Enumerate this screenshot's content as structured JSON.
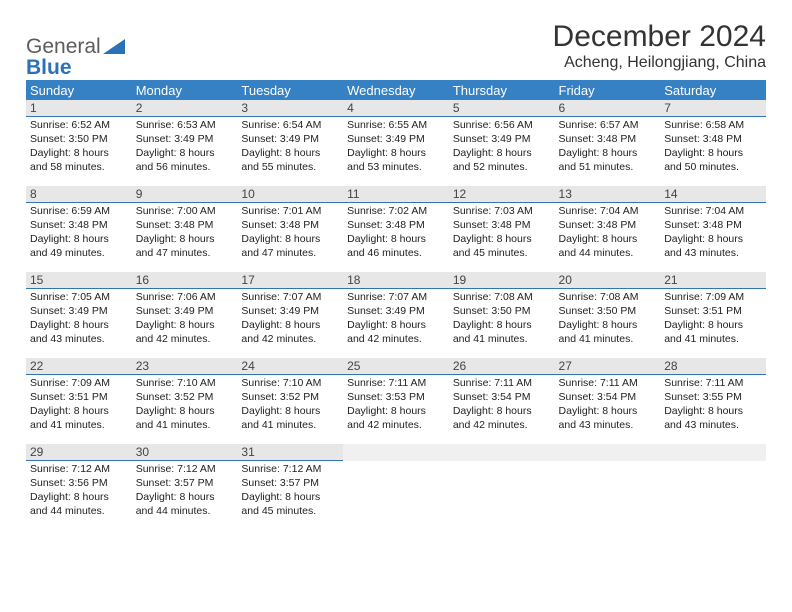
{
  "logo": {
    "general": "General",
    "blue": "Blue"
  },
  "title": "December 2024",
  "subtitle": "Acheng, Heilongjiang, China",
  "colors": {
    "header_bg": "#3581c4",
    "header_fg": "#ffffff",
    "daybar_bg": "#e7e7e7",
    "daybar_border": "#3074b0",
    "text": "#222222",
    "logo_gray": "#5c5c5c",
    "logo_blue": "#2a72b8"
  },
  "weekdays": [
    "Sunday",
    "Monday",
    "Tuesday",
    "Wednesday",
    "Thursday",
    "Friday",
    "Saturday"
  ],
  "days": [
    {
      "n": 1,
      "sunrise": "6:52 AM",
      "sunset": "3:50 PM",
      "day_h": 8,
      "day_m": 58
    },
    {
      "n": 2,
      "sunrise": "6:53 AM",
      "sunset": "3:49 PM",
      "day_h": 8,
      "day_m": 56
    },
    {
      "n": 3,
      "sunrise": "6:54 AM",
      "sunset": "3:49 PM",
      "day_h": 8,
      "day_m": 55
    },
    {
      "n": 4,
      "sunrise": "6:55 AM",
      "sunset": "3:49 PM",
      "day_h": 8,
      "day_m": 53
    },
    {
      "n": 5,
      "sunrise": "6:56 AM",
      "sunset": "3:49 PM",
      "day_h": 8,
      "day_m": 52
    },
    {
      "n": 6,
      "sunrise": "6:57 AM",
      "sunset": "3:48 PM",
      "day_h": 8,
      "day_m": 51
    },
    {
      "n": 7,
      "sunrise": "6:58 AM",
      "sunset": "3:48 PM",
      "day_h": 8,
      "day_m": 50
    },
    {
      "n": 8,
      "sunrise": "6:59 AM",
      "sunset": "3:48 PM",
      "day_h": 8,
      "day_m": 49
    },
    {
      "n": 9,
      "sunrise": "7:00 AM",
      "sunset": "3:48 PM",
      "day_h": 8,
      "day_m": 47
    },
    {
      "n": 10,
      "sunrise": "7:01 AM",
      "sunset": "3:48 PM",
      "day_h": 8,
      "day_m": 47
    },
    {
      "n": 11,
      "sunrise": "7:02 AM",
      "sunset": "3:48 PM",
      "day_h": 8,
      "day_m": 46
    },
    {
      "n": 12,
      "sunrise": "7:03 AM",
      "sunset": "3:48 PM",
      "day_h": 8,
      "day_m": 45
    },
    {
      "n": 13,
      "sunrise": "7:04 AM",
      "sunset": "3:48 PM",
      "day_h": 8,
      "day_m": 44
    },
    {
      "n": 14,
      "sunrise": "7:04 AM",
      "sunset": "3:48 PM",
      "day_h": 8,
      "day_m": 43
    },
    {
      "n": 15,
      "sunrise": "7:05 AM",
      "sunset": "3:49 PM",
      "day_h": 8,
      "day_m": 43
    },
    {
      "n": 16,
      "sunrise": "7:06 AM",
      "sunset": "3:49 PM",
      "day_h": 8,
      "day_m": 42
    },
    {
      "n": 17,
      "sunrise": "7:07 AM",
      "sunset": "3:49 PM",
      "day_h": 8,
      "day_m": 42
    },
    {
      "n": 18,
      "sunrise": "7:07 AM",
      "sunset": "3:49 PM",
      "day_h": 8,
      "day_m": 42
    },
    {
      "n": 19,
      "sunrise": "7:08 AM",
      "sunset": "3:50 PM",
      "day_h": 8,
      "day_m": 41
    },
    {
      "n": 20,
      "sunrise": "7:08 AM",
      "sunset": "3:50 PM",
      "day_h": 8,
      "day_m": 41
    },
    {
      "n": 21,
      "sunrise": "7:09 AM",
      "sunset": "3:51 PM",
      "day_h": 8,
      "day_m": 41
    },
    {
      "n": 22,
      "sunrise": "7:09 AM",
      "sunset": "3:51 PM",
      "day_h": 8,
      "day_m": 41
    },
    {
      "n": 23,
      "sunrise": "7:10 AM",
      "sunset": "3:52 PM",
      "day_h": 8,
      "day_m": 41
    },
    {
      "n": 24,
      "sunrise": "7:10 AM",
      "sunset": "3:52 PM",
      "day_h": 8,
      "day_m": 41
    },
    {
      "n": 25,
      "sunrise": "7:11 AM",
      "sunset": "3:53 PM",
      "day_h": 8,
      "day_m": 42
    },
    {
      "n": 26,
      "sunrise": "7:11 AM",
      "sunset": "3:54 PM",
      "day_h": 8,
      "day_m": 42
    },
    {
      "n": 27,
      "sunrise": "7:11 AM",
      "sunset": "3:54 PM",
      "day_h": 8,
      "day_m": 43
    },
    {
      "n": 28,
      "sunrise": "7:11 AM",
      "sunset": "3:55 PM",
      "day_h": 8,
      "day_m": 43
    },
    {
      "n": 29,
      "sunrise": "7:12 AM",
      "sunset": "3:56 PM",
      "day_h": 8,
      "day_m": 44
    },
    {
      "n": 30,
      "sunrise": "7:12 AM",
      "sunset": "3:57 PM",
      "day_h": 8,
      "day_m": 44
    },
    {
      "n": 31,
      "sunrise": "7:12 AM",
      "sunset": "3:57 PM",
      "day_h": 8,
      "day_m": 45
    }
  ],
  "labels": {
    "sunrise": "Sunrise:",
    "sunset": "Sunset:",
    "daylight": "Daylight:",
    "hours": "hours",
    "and": "and",
    "minutes": "minutes."
  }
}
